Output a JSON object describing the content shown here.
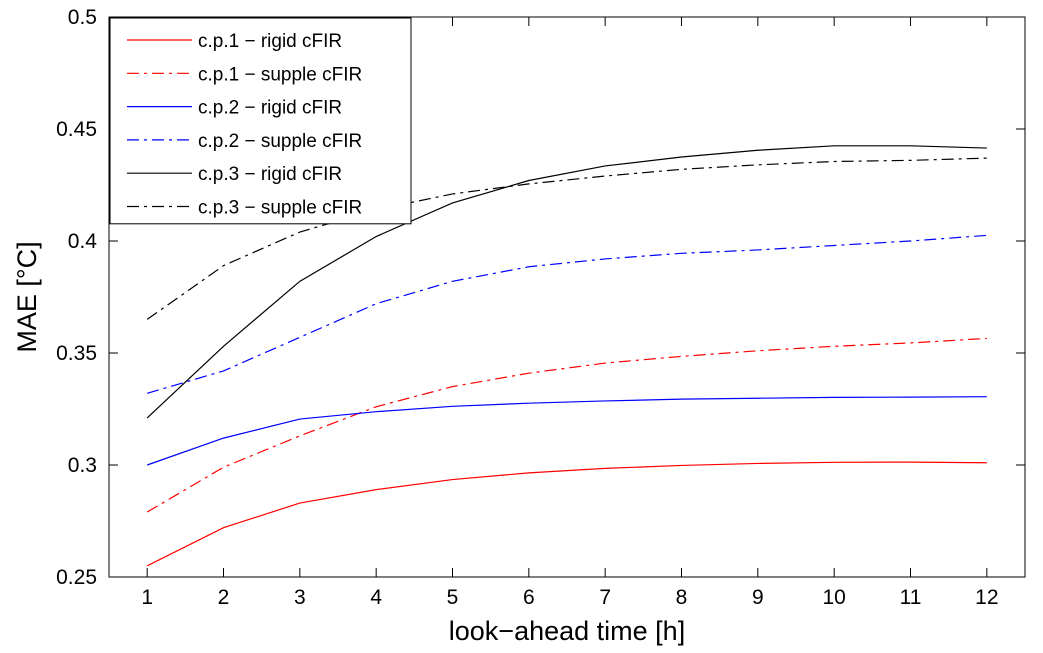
{
  "chart_data": {
    "type": "line",
    "title": "",
    "xlabel": "look−ahead time [h]",
    "ylabel": "MAE [°C]",
    "xlim": [
      0.5,
      12.5
    ],
    "ylim": [
      0.25,
      0.5
    ],
    "x": [
      1,
      2,
      3,
      4,
      5,
      6,
      7,
      8,
      9,
      10,
      11,
      12
    ],
    "x_tick_labels": [
      "1",
      "2",
      "3",
      "4",
      "5",
      "6",
      "7",
      "8",
      "9",
      "10",
      "11",
      "12"
    ],
    "y_ticks": [
      0.25,
      0.3,
      0.35,
      0.4,
      0.45,
      0.5
    ],
    "y_tick_labels": [
      "0.25",
      "0.3",
      "0.35",
      "0.4",
      "0.45",
      "0.5"
    ],
    "grid": false,
    "legend_position": "top-left",
    "series": [
      {
        "name": "c.p.1 − rigid cFIR",
        "color": "#ff0000",
        "style": "solid",
        "values": [
          0.255,
          0.272,
          0.283,
          0.289,
          0.2935,
          0.2965,
          0.2985,
          0.2998,
          0.3007,
          0.3012,
          0.3013,
          0.301
        ]
      },
      {
        "name": "c.p.1 − supple cFIR",
        "color": "#ff0000",
        "style": "dashdot",
        "values": [
          0.279,
          0.299,
          0.313,
          0.326,
          0.335,
          0.341,
          0.3455,
          0.3485,
          0.351,
          0.353,
          0.3545,
          0.3565
        ]
      },
      {
        "name": "c.p.2 − rigid cFIR",
        "color": "#0000ff",
        "style": "solid",
        "values": [
          0.3,
          0.312,
          0.3205,
          0.3238,
          0.3262,
          0.3276,
          0.3286,
          0.3294,
          0.3298,
          0.3302,
          0.3303,
          0.3305
        ]
      },
      {
        "name": "c.p.2 − supple cFIR",
        "color": "#0000ff",
        "style": "dashdot",
        "values": [
          0.332,
          0.342,
          0.357,
          0.372,
          0.382,
          0.3885,
          0.392,
          0.3945,
          0.396,
          0.398,
          0.4,
          0.4025
        ]
      },
      {
        "name": "c.p.3 − rigid cFIR",
        "color": "#000000",
        "style": "solid",
        "values": [
          0.321,
          0.353,
          0.382,
          0.402,
          0.417,
          0.427,
          0.4335,
          0.4375,
          0.4405,
          0.4425,
          0.4425,
          0.4415
        ]
      },
      {
        "name": "c.p.3 − supple cFIR",
        "color": "#000000",
        "style": "dashdot",
        "values": [
          0.365,
          0.389,
          0.404,
          0.414,
          0.421,
          0.4255,
          0.429,
          0.432,
          0.434,
          0.4355,
          0.436,
          0.437
        ]
      }
    ]
  }
}
